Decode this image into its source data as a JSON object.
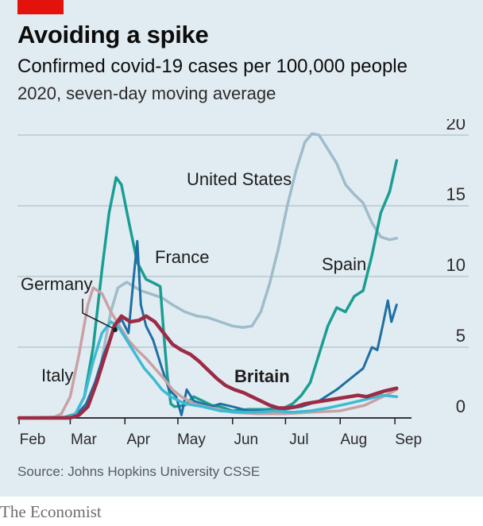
{
  "header": {
    "title": "Avoiding a spike",
    "subtitle": "Confirmed covid-19 cases per 100,000 people",
    "subtitle2": "2020, seven-day moving average"
  },
  "source": "Source: Johns Hopkins University CSSE",
  "brand": "The Economist",
  "colors": {
    "background": "#e1ecf2",
    "accent_red": "#e3120b",
    "grid": "#b7c6ce"
  },
  "chart_data": {
    "type": "line",
    "title": "Avoiding a spike",
    "subtitle": "Confirmed covid-19 cases per 100,000 people",
    "ylim": [
      0,
      20
    ],
    "y_ticks": [
      0,
      5,
      10,
      15,
      20
    ],
    "x_range": [
      "2020-02-01",
      "2020-09-05"
    ],
    "x_ticks": [
      {
        "label": "Feb",
        "date": "2020-02-01"
      },
      {
        "label": "Mar",
        "date": "2020-03-01"
      },
      {
        "label": "Apr",
        "date": "2020-04-01"
      },
      {
        "label": "May",
        "date": "2020-05-01"
      },
      {
        "label": "Jun",
        "date": "2020-06-01"
      },
      {
        "label": "Jul",
        "date": "2020-07-01"
      },
      {
        "label": "Aug",
        "date": "2020-08-01"
      },
      {
        "label": "Sep",
        "date": "2020-09-01"
      }
    ],
    "grid": true,
    "series": [
      {
        "name": "United States",
        "color": "#9fbccb",
        "width": 3.5,
        "label": "United States",
        "points": [
          [
            "2020-02-01",
            0
          ],
          [
            "2020-03-01",
            0.1
          ],
          [
            "2020-03-10",
            0.6
          ],
          [
            "2020-03-18",
            3.5
          ],
          [
            "2020-03-24",
            7.5
          ],
          [
            "2020-03-28",
            9.2
          ],
          [
            "2020-04-02",
            9.6
          ],
          [
            "2020-04-06",
            9.3
          ],
          [
            "2020-04-10",
            9.0
          ],
          [
            "2020-04-15",
            8.8
          ],
          [
            "2020-04-22",
            8.5
          ],
          [
            "2020-04-28",
            8.0
          ],
          [
            "2020-05-05",
            7.5
          ],
          [
            "2020-05-12",
            7.2
          ],
          [
            "2020-05-18",
            7.1
          ],
          [
            "2020-05-25",
            6.8
          ],
          [
            "2020-06-01",
            6.5
          ],
          [
            "2020-06-07",
            6.4
          ],
          [
            "2020-06-12",
            6.5
          ],
          [
            "2020-06-17",
            7.5
          ],
          [
            "2020-06-22",
            9.5
          ],
          [
            "2020-06-27",
            12.0
          ],
          [
            "2020-07-02",
            15.0
          ],
          [
            "2020-07-07",
            17.5
          ],
          [
            "2020-07-12",
            19.5
          ],
          [
            "2020-07-16",
            20.1
          ],
          [
            "2020-07-20",
            20.0
          ],
          [
            "2020-07-25",
            19.0
          ],
          [
            "2020-07-30",
            18.0
          ],
          [
            "2020-08-04",
            16.5
          ],
          [
            "2020-08-09",
            15.8
          ],
          [
            "2020-08-14",
            15.2
          ],
          [
            "2020-08-19",
            13.8
          ],
          [
            "2020-08-24",
            12.8
          ],
          [
            "2020-08-29",
            12.6
          ],
          [
            "2020-09-02",
            12.7
          ]
        ]
      },
      {
        "name": "Spain",
        "color": "#1a9e93",
        "width": 3.5,
        "label": "Spain",
        "points": [
          [
            "2020-02-01",
            0
          ],
          [
            "2020-02-26",
            0
          ],
          [
            "2020-03-04",
            0.3
          ],
          [
            "2020-03-09",
            1.5
          ],
          [
            "2020-03-14",
            5.0
          ],
          [
            "2020-03-19",
            10.5
          ],
          [
            "2020-03-23",
            14.5
          ],
          [
            "2020-03-27",
            17.0
          ],
          [
            "2020-03-30",
            16.5
          ],
          [
            "2020-04-03",
            14.0
          ],
          [
            "2020-04-08",
            11.0
          ],
          [
            "2020-04-13",
            9.8
          ],
          [
            "2020-04-18",
            9.5
          ],
          [
            "2020-04-21",
            9.3
          ],
          [
            "2020-04-23",
            6.0
          ],
          [
            "2020-04-25",
            3.0
          ],
          [
            "2020-04-27",
            1.0
          ],
          [
            "2020-04-29",
            0.8
          ],
          [
            "2020-05-05",
            0.9
          ],
          [
            "2020-05-10",
            1.5
          ],
          [
            "2020-05-15",
            1.2
          ],
          [
            "2020-05-20",
            0.9
          ],
          [
            "2020-05-25",
            0.8
          ],
          [
            "2020-06-01",
            0.5
          ],
          [
            "2020-06-10",
            0.6
          ],
          [
            "2020-06-20",
            0.6
          ],
          [
            "2020-06-30",
            0.7
          ],
          [
            "2020-07-05",
            1.0
          ],
          [
            "2020-07-10",
            1.6
          ],
          [
            "2020-07-15",
            2.5
          ],
          [
            "2020-07-20",
            4.5
          ],
          [
            "2020-07-25",
            6.5
          ],
          [
            "2020-07-30",
            7.8
          ],
          [
            "2020-08-04",
            7.5
          ],
          [
            "2020-08-09",
            8.6
          ],
          [
            "2020-08-14",
            9.0
          ],
          [
            "2020-08-19",
            11.5
          ],
          [
            "2020-08-24",
            14.5
          ],
          [
            "2020-08-29",
            16.0
          ],
          [
            "2020-09-02",
            18.2
          ]
        ]
      },
      {
        "name": "France",
        "color": "#1e6fa3",
        "width": 3,
        "label": "France",
        "points": [
          [
            "2020-02-01",
            0
          ],
          [
            "2020-02-27",
            0
          ],
          [
            "2020-03-05",
            0.3
          ],
          [
            "2020-03-10",
            1.0
          ],
          [
            "2020-03-15",
            2.5
          ],
          [
            "2020-03-20",
            4.5
          ],
          [
            "2020-03-25",
            6.0
          ],
          [
            "2020-03-30",
            7.0
          ],
          [
            "2020-04-03",
            6.0
          ],
          [
            "2020-04-06",
            10.0
          ],
          [
            "2020-04-08",
            12.5
          ],
          [
            "2020-04-10",
            8.0
          ],
          [
            "2020-04-13",
            6.5
          ],
          [
            "2020-04-17",
            5.5
          ],
          [
            "2020-04-22",
            3.5
          ],
          [
            "2020-04-26",
            2.0
          ],
          [
            "2020-04-30",
            1.5
          ],
          [
            "2020-05-03",
            0.2
          ],
          [
            "2020-05-06",
            2.0
          ],
          [
            "2020-05-10",
            1.2
          ],
          [
            "2020-05-15",
            1.0
          ],
          [
            "2020-05-20",
            0.8
          ],
          [
            "2020-05-25",
            1.0
          ],
          [
            "2020-06-01",
            0.8
          ],
          [
            "2020-06-10",
            0.5
          ],
          [
            "2020-06-20",
            0.5
          ],
          [
            "2020-06-30",
            0.6
          ],
          [
            "2020-07-10",
            0.8
          ],
          [
            "2020-07-20",
            1.2
          ],
          [
            "2020-07-30",
            2.0
          ],
          [
            "2020-08-04",
            2.5
          ],
          [
            "2020-08-09",
            3.0
          ],
          [
            "2020-08-14",
            3.5
          ],
          [
            "2020-08-19",
            5.0
          ],
          [
            "2020-08-22",
            4.8
          ],
          [
            "2020-08-25",
            6.5
          ],
          [
            "2020-08-28",
            8.3
          ],
          [
            "2020-08-30",
            6.8
          ],
          [
            "2020-09-02",
            8.0
          ]
        ]
      },
      {
        "name": "Italy",
        "color": "#c9a1a5",
        "width": 3.5,
        "label": "Italy",
        "points": [
          [
            "2020-02-01",
            0
          ],
          [
            "2020-02-20",
            0
          ],
          [
            "2020-02-25",
            0.3
          ],
          [
            "2020-03-01",
            1.5
          ],
          [
            "2020-03-06",
            4.5
          ],
          [
            "2020-03-11",
            8.0
          ],
          [
            "2020-03-14",
            9.2
          ],
          [
            "2020-03-19",
            8.8
          ],
          [
            "2020-03-24",
            7.5
          ],
          [
            "2020-03-29",
            6.5
          ],
          [
            "2020-04-03",
            5.5
          ],
          [
            "2020-04-08",
            4.8
          ],
          [
            "2020-04-13",
            4.2
          ],
          [
            "2020-04-18",
            3.5
          ],
          [
            "2020-04-23",
            2.8
          ],
          [
            "2020-04-28",
            2.0
          ],
          [
            "2020-05-03",
            1.5
          ],
          [
            "2020-05-10",
            1.0
          ],
          [
            "2020-05-20",
            0.7
          ],
          [
            "2020-06-01",
            0.4
          ],
          [
            "2020-06-15",
            0.3
          ],
          [
            "2020-07-01",
            0.3
          ],
          [
            "2020-07-15",
            0.4
          ],
          [
            "2020-08-01",
            0.5
          ],
          [
            "2020-08-15",
            0.9
          ],
          [
            "2020-08-25",
            1.5
          ],
          [
            "2020-09-02",
            2.0
          ]
        ]
      },
      {
        "name": "Germany",
        "color": "#3fbad3",
        "width": 3.5,
        "label": "Germany",
        "points": [
          [
            "2020-02-01",
            0
          ],
          [
            "2020-02-28",
            0
          ],
          [
            "2020-03-04",
            0.3
          ],
          [
            "2020-03-09",
            1.5
          ],
          [
            "2020-03-14",
            4.0
          ],
          [
            "2020-03-19",
            6.0
          ],
          [
            "2020-03-24",
            6.8
          ],
          [
            "2020-03-28",
            6.5
          ],
          [
            "2020-04-02",
            5.5
          ],
          [
            "2020-04-07",
            4.5
          ],
          [
            "2020-04-12",
            3.5
          ],
          [
            "2020-04-17",
            2.8
          ],
          [
            "2020-04-22",
            2.0
          ],
          [
            "2020-04-27",
            1.5
          ],
          [
            "2020-05-05",
            1.0
          ],
          [
            "2020-05-15",
            0.8
          ],
          [
            "2020-05-25",
            0.5
          ],
          [
            "2020-06-05",
            0.4
          ],
          [
            "2020-06-15",
            0.4
          ],
          [
            "2020-06-25",
            0.5
          ],
          [
            "2020-07-05",
            0.4
          ],
          [
            "2020-07-15",
            0.5
          ],
          [
            "2020-07-25",
            0.7
          ],
          [
            "2020-08-05",
            1.0
          ],
          [
            "2020-08-15",
            1.3
          ],
          [
            "2020-08-25",
            1.6
          ],
          [
            "2020-09-02",
            1.5
          ]
        ]
      },
      {
        "name": "Britain",
        "color": "#9c2b45",
        "width": 4.5,
        "label": "Britain",
        "points": [
          [
            "2020-02-01",
            0
          ],
          [
            "2020-03-01",
            0
          ],
          [
            "2020-03-06",
            0.2
          ],
          [
            "2020-03-11",
            0.8
          ],
          [
            "2020-03-16",
            2.5
          ],
          [
            "2020-03-21",
            4.5
          ],
          [
            "2020-03-26",
            6.5
          ],
          [
            "2020-03-30",
            7.2
          ],
          [
            "2020-04-04",
            6.8
          ],
          [
            "2020-04-09",
            6.9
          ],
          [
            "2020-04-13",
            7.2
          ],
          [
            "2020-04-18",
            6.8
          ],
          [
            "2020-04-23",
            6.0
          ],
          [
            "2020-04-28",
            5.2
          ],
          [
            "2020-05-03",
            4.8
          ],
          [
            "2020-05-08",
            4.5
          ],
          [
            "2020-05-13",
            4.0
          ],
          [
            "2020-05-18",
            3.4
          ],
          [
            "2020-05-23",
            2.8
          ],
          [
            "2020-05-28",
            2.3
          ],
          [
            "2020-06-02",
            2.0
          ],
          [
            "2020-06-07",
            1.8
          ],
          [
            "2020-06-12",
            1.5
          ],
          [
            "2020-06-17",
            1.2
          ],
          [
            "2020-06-22",
            0.9
          ],
          [
            "2020-06-27",
            0.7
          ],
          [
            "2020-07-02",
            0.7
          ],
          [
            "2020-07-07",
            0.8
          ],
          [
            "2020-07-12",
            1.0
          ],
          [
            "2020-07-17",
            1.1
          ],
          [
            "2020-07-22",
            1.2
          ],
          [
            "2020-07-27",
            1.3
          ],
          [
            "2020-08-01",
            1.4
          ],
          [
            "2020-08-06",
            1.5
          ],
          [
            "2020-08-11",
            1.6
          ],
          [
            "2020-08-16",
            1.5
          ],
          [
            "2020-08-21",
            1.7
          ],
          [
            "2020-08-26",
            1.9
          ],
          [
            "2020-09-02",
            2.1
          ]
        ]
      }
    ],
    "annotations": [
      {
        "text": "United States",
        "series": "United States"
      },
      {
        "text": "France",
        "series": "France"
      },
      {
        "text": "Spain",
        "series": "Spain"
      },
      {
        "text": "Germany",
        "series": "Germany"
      },
      {
        "text": "Italy",
        "series": "Italy"
      },
      {
        "text": "Britain",
        "series": "Britain",
        "bold": true
      }
    ]
  }
}
